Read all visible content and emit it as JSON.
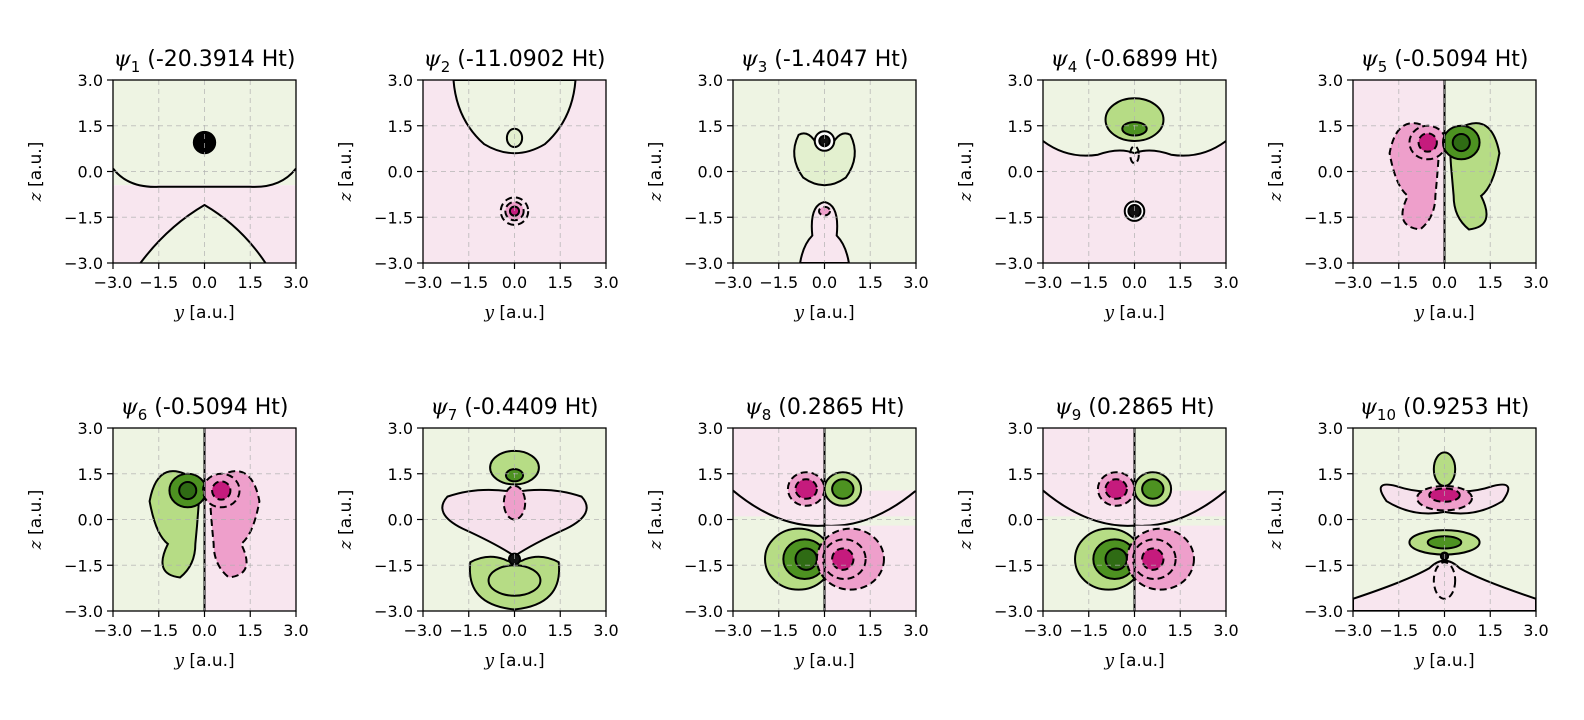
{
  "chart_data": [
    {
      "type": "contour",
      "panel": 1,
      "symbol": "ψ",
      "index": "1",
      "energy_label": "(-20.3914 Ht)",
      "energy_ht": -20.3914,
      "xlabel_var": "y",
      "xlabel_unit": "[a.u.]",
      "ylabel_var": "z",
      "ylabel_unit": "[a.u.]",
      "xlim": [
        -3,
        3
      ],
      "ylim": [
        -3,
        3
      ],
      "xticks": [
        "−3.0",
        "−1.5",
        "0.0",
        "1.5",
        "3.0"
      ],
      "yticks": [
        "−3.0",
        "−1.5",
        "0.0",
        "1.5",
        "3.0"
      ],
      "grid": true
    },
    {
      "type": "contour",
      "panel": 2,
      "symbol": "ψ",
      "index": "2",
      "energy_label": "(-11.0902 Ht)",
      "energy_ht": -11.0902,
      "xlabel_var": "y",
      "xlabel_unit": "[a.u.]",
      "ylabel_var": "z",
      "ylabel_unit": "[a.u.]",
      "xlim": [
        -3,
        3
      ],
      "ylim": [
        -3,
        3
      ],
      "xticks": [
        "−3.0",
        "−1.5",
        "0.0",
        "1.5",
        "3.0"
      ],
      "yticks": [
        "−3.0",
        "−1.5",
        "0.0",
        "1.5",
        "3.0"
      ],
      "grid": true
    },
    {
      "type": "contour",
      "panel": 3,
      "symbol": "ψ",
      "index": "3",
      "energy_label": "(-1.4047 Ht)",
      "energy_ht": -1.4047,
      "xlabel_var": "y",
      "xlabel_unit": "[a.u.]",
      "ylabel_var": "z",
      "ylabel_unit": "[a.u.]",
      "xlim": [
        -3,
        3
      ],
      "ylim": [
        -3,
        3
      ],
      "xticks": [
        "−3.0",
        "−1.5",
        "0.0",
        "1.5",
        "3.0"
      ],
      "yticks": [
        "−3.0",
        "−1.5",
        "0.0",
        "1.5",
        "3.0"
      ],
      "grid": true
    },
    {
      "type": "contour",
      "panel": 4,
      "symbol": "ψ",
      "index": "4",
      "energy_label": "(-0.6899 Ht)",
      "energy_ht": -0.6899,
      "xlabel_var": "y",
      "xlabel_unit": "[a.u.]",
      "ylabel_var": "z",
      "ylabel_unit": "[a.u.]",
      "xlim": [
        -3,
        3
      ],
      "ylim": [
        -3,
        3
      ],
      "xticks": [
        "−3.0",
        "−1.5",
        "0.0",
        "1.5",
        "3.0"
      ],
      "yticks": [
        "−3.0",
        "−1.5",
        "0.0",
        "1.5",
        "3.0"
      ],
      "grid": true
    },
    {
      "type": "contour",
      "panel": 5,
      "symbol": "ψ",
      "index": "5",
      "energy_label": "(-0.5094 Ht)",
      "energy_ht": -0.5094,
      "xlabel_var": "y",
      "xlabel_unit": "[a.u.]",
      "ylabel_var": "z",
      "ylabel_unit": "[a.u.]",
      "xlim": [
        -3,
        3
      ],
      "ylim": [
        -3,
        3
      ],
      "xticks": [
        "−3.0",
        "−1.5",
        "0.0",
        "1.5",
        "3.0"
      ],
      "yticks": [
        "−3.0",
        "−1.5",
        "0.0",
        "1.5",
        "3.0"
      ],
      "grid": true
    },
    {
      "type": "contour",
      "panel": 6,
      "symbol": "ψ",
      "index": "6",
      "energy_label": "(-0.5094 Ht)",
      "energy_ht": -0.5094,
      "xlabel_var": "y",
      "xlabel_unit": "[a.u.]",
      "ylabel_var": "z",
      "ylabel_unit": "[a.u.]",
      "xlim": [
        -3,
        3
      ],
      "ylim": [
        -3,
        3
      ],
      "xticks": [
        "−3.0",
        "−1.5",
        "0.0",
        "1.5",
        "3.0"
      ],
      "yticks": [
        "−3.0",
        "−1.5",
        "0.0",
        "1.5",
        "3.0"
      ],
      "grid": true
    },
    {
      "type": "contour",
      "panel": 7,
      "symbol": "ψ",
      "index": "7",
      "energy_label": "(-0.4409 Ht)",
      "energy_ht": -0.4409,
      "xlabel_var": "y",
      "xlabel_unit": "[a.u.]",
      "ylabel_var": "z",
      "ylabel_unit": "[a.u.]",
      "xlim": [
        -3,
        3
      ],
      "ylim": [
        -3,
        3
      ],
      "xticks": [
        "−3.0",
        "−1.5",
        "0.0",
        "1.5",
        "3.0"
      ],
      "yticks": [
        "−3.0",
        "−1.5",
        "0.0",
        "1.5",
        "3.0"
      ],
      "grid": true
    },
    {
      "type": "contour",
      "panel": 8,
      "symbol": "ψ",
      "index": "8",
      "energy_label": "(0.2865 Ht)",
      "energy_ht": 0.2865,
      "xlabel_var": "y",
      "xlabel_unit": "[a.u.]",
      "ylabel_var": "z",
      "ylabel_unit": "[a.u.]",
      "xlim": [
        -3,
        3
      ],
      "ylim": [
        -3,
        3
      ],
      "xticks": [
        "−3.0",
        "−1.5",
        "0.0",
        "1.5",
        "3.0"
      ],
      "yticks": [
        "−3.0",
        "−1.5",
        "0.0",
        "1.5",
        "3.0"
      ],
      "grid": true
    },
    {
      "type": "contour",
      "panel": 9,
      "symbol": "ψ",
      "index": "9",
      "energy_label": "(0.2865 Ht)",
      "energy_ht": 0.2865,
      "xlabel_var": "y",
      "xlabel_unit": "[a.u.]",
      "ylabel_var": "z",
      "ylabel_unit": "[a.u.]",
      "xlim": [
        -3,
        3
      ],
      "ylim": [
        -3,
        3
      ],
      "xticks": [
        "−3.0",
        "−1.5",
        "0.0",
        "1.5",
        "3.0"
      ],
      "yticks": [
        "−3.0",
        "−1.5",
        "0.0",
        "1.5",
        "3.0"
      ],
      "grid": true
    },
    {
      "type": "contour",
      "panel": 10,
      "symbol": "ψ",
      "index": "10",
      "energy_label": "(0.9253 Ht)",
      "energy_ht": 0.9253,
      "xlabel_var": "y",
      "xlabel_unit": "[a.u.]",
      "ylabel_var": "z",
      "ylabel_unit": "[a.u.]",
      "xlim": [
        -3,
        3
      ],
      "ylim": [
        -3,
        3
      ],
      "xticks": [
        "−3.0",
        "−1.5",
        "0.0",
        "1.5",
        "3.0"
      ],
      "yticks": [
        "−3.0",
        "−1.5",
        "0.0",
        "1.5",
        "3.0"
      ],
      "grid": true
    }
  ],
  "colors": {
    "positive_light": "#e3f0cf",
    "positive_mid": "#b6dc85",
    "positive_dark": "#4d9221",
    "negative_light": "#f6e1ec",
    "negative_mid": "#ee9fcb",
    "negative_dark": "#c51b7d",
    "background_positive": "#eef4e3",
    "background_negative": "#f8e6ef",
    "contour_line": "#000000",
    "grid_line": "#b0b0b0"
  }
}
